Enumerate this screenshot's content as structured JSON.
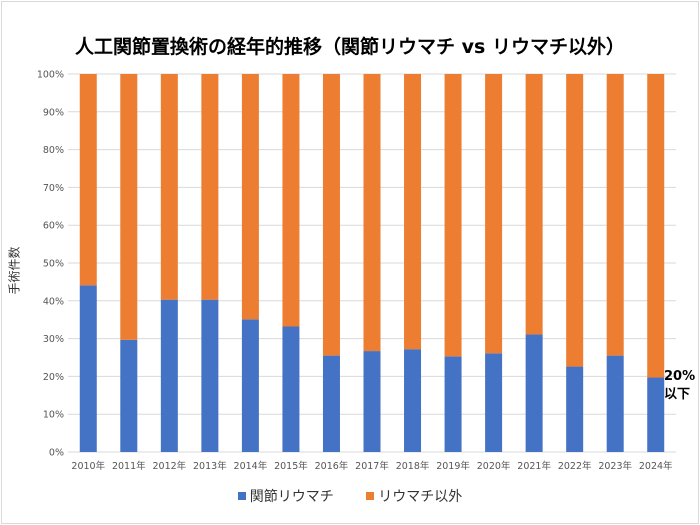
{
  "chart_data": {
    "type": "bar",
    "stacked": true,
    "title": "人工関節置換術の経年的推移（関節リウマチ vs リウマチ以外）",
    "xlabel": "",
    "ylabel": "手術件数",
    "ylim": [
      0,
      100
    ],
    "yticks": [
      "0%",
      "10%",
      "20%",
      "30%",
      "40%",
      "50%",
      "60%",
      "70%",
      "80%",
      "90%",
      "100%"
    ],
    "categories": [
      "2010年",
      "2011年",
      "2012年",
      "2013年",
      "2014年",
      "2015年",
      "2016年",
      "2017年",
      "2018年",
      "2019年",
      "2020年",
      "2021年",
      "2022年",
      "2023年",
      "2024年"
    ],
    "series": [
      {
        "name": "関節リウマチ",
        "color": "#4472c4",
        "values": [
          44.1,
          29.7,
          40.3,
          40.3,
          35.1,
          33.2,
          25.5,
          26.7,
          27.2,
          25.3,
          26.1,
          31.1,
          22.6,
          25.5,
          19.7
        ]
      },
      {
        "name": "リウマチ以外",
        "color": "#ed7d31",
        "values": [
          55.9,
          70.3,
          59.7,
          59.7,
          64.9,
          66.8,
          74.5,
          73.3,
          72.8,
          74.7,
          73.9,
          68.9,
          77.4,
          74.5,
          80.3
        ]
      }
    ],
    "annotation": {
      "line1": "20%",
      "line2": "以下"
    },
    "grid": true,
    "legend_position": "bottom"
  }
}
